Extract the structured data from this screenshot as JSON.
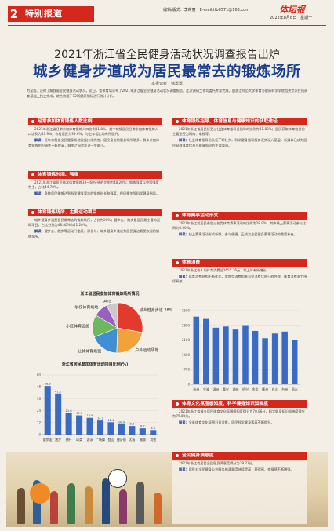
{
  "header": {
    "page_number": "2",
    "section": "特别报道",
    "info": "编辑/版式：李荷童　E-mail:tlb0571@163.com",
    "brand": "体坛报",
    "date": "2022年8月8日　星期一"
  },
  "subtitle": "2021年浙江省全民健身活动状况调查报告出炉",
  "headline": "城乡健身步道成为居民最常去的锻炼场所",
  "byline": "本报记者　徐翠翠",
  "lead": "为全面、及时了解我省全民健身活动状况，近日，省体育局公布了2021年浙江省全民健身活动状况调查报告。此次调研工作均委托专家完成，由浙江师范大学体育与健康科学学院相关专家在线调查基础上独立完成，综合数据于12项健康指标进行统计分析。",
  "sections": {
    "s1": {
      "title": "经常参加体育锻炼人数比例",
      "text": "2021年浙江省经常参加体育锻炼人口比例41.8%，其中城镇居民经常参加体育锻炼人口比例为43.9%，农村居民为39.6%，与上年相比均有所提升。",
      "key": "解读：",
      "key_text": "近年来我省全民健身场地设施持续完善，居民身边的健身场所增多，群众参加体育锻炼的积极性不断提高，城乡之间差距进一步缩小。"
    },
    "s2": {
      "title": "体育锻炼时间、强度",
      "text": "2021年浙江省居民每次体育锻炼30～60分钟的比例为48.20%；锻炼强度以中等强度为主，占比44.78%。",
      "key": "解读：",
      "key_text": "多数居民能够达到科学健身要求的锻炼时长和强度，但仍需加强科学健身指导。"
    },
    "s3": {
      "title": "体育锻炼场所、主要运动项目",
      "text": "城乡健身步道是居民最常去的锻炼场所，占比为28%；健步走、跑步是居民最主要的运动项目，占比分别为48.80%和41.20%。",
      "key": "解读：",
      "key_text": "健步走、跑步等运动门槛低、易参与，城乡健身步道成为居民身边最受欢迎的锻炼场所。"
    },
    "s4": {
      "title": "体育锻炼指导、体育信息与健康知识的获取途径",
      "text": "2021年浙江省居民接受过社会体育指导员指导的比例为31.80%；居民获取体育信息的主要途径为网络、电视等。",
      "key": "解读：",
      "key_text": "社会体育指导员队伍不断壮大，科学健身指导服务逐步深入基层，新媒体已成为居民获取体育信息与健康知识的主要渠道。"
    },
    "s5": {
      "title": "体育赛事活动形式",
      "text": "2021年浙江省居民参加过各类体育赛事活动的比例为28.9%，其中线上赛事活动参与比例为6.50%。",
      "key": "解读：",
      "key_text": "线上赛事活动形式新颖、参与便捷，正成为全民健身赛事活动的重要补充。"
    },
    "s6": {
      "title": "体育消费",
      "text": "2021年浙江省人均体育消费达2655.36元，较上年有所增长。",
      "key": "解读：",
      "key_text": "体育消费结构不断优化，实物型消费和参与型消费比例日趋合理，体育消费潜力持续释放。"
    },
    "s7": {
      "title": "体育文化氛围感知度、科学健身知识知晓度",
      "text": "2021年浙江省城乡居民体育文化氛围感知度得分为70.86分，科学健身知识知晓度得分为79.84分。",
      "key": "解读：",
      "key_text": "全省体育文化氛围日益浓厚，居民科学健身素养不断提升。"
    },
    "s8": {
      "title": "全民健身满意度",
      "text": "2021年浙江省居民全民健身满意度得分为79.73分。",
      "key": "解读：",
      "key_text": "居民对全民健身公共服务的满意度持续提高，获得感、幸福感不断增强。"
    }
  },
  "chart_pie": {
    "title": "浙江省居民参加体育锻炼场所情况",
    "type": "pie",
    "labels": [
      "城乡健身步道",
      "户外运动场地",
      "公共体育场馆",
      "小区体育设施",
      "学校体育场地",
      "其他"
    ],
    "values": [
      28.0,
      22.6,
      18.5,
      14.2,
      9.5,
      7.2
    ],
    "display": [
      "城乡健身步道 28%",
      "户外运动场地",
      "公共体育场馆",
      "小区体育设施",
      "学校体育场地",
      "其他"
    ],
    "colors": [
      "#e23b2e",
      "#f2a23b",
      "#3f8fd2",
      "#6cb85c",
      "#9b5fc0",
      "#c9c9c9"
    ]
  },
  "chart_bar_left": {
    "title": "浙江省居民参加体育运动项目比例(%)",
    "type": "bar",
    "categories": [
      "健步走",
      "跑步",
      "骑行",
      "球类",
      "游泳",
      "广场舞",
      "登山",
      "健身操",
      "太极",
      "瑜伽",
      "其他"
    ],
    "values": [
      48.8,
      41.2,
      21.6,
      19.3,
      16.8,
      14.1,
      12.4,
      10.3,
      8.6,
      6.2,
      4.5
    ],
    "ylim": [
      0,
      60
    ],
    "color": "#3a6bc4"
  },
  "chart_bar_right": {
    "title": "",
    "type": "bar",
    "categories": [
      "杭州",
      "宁波",
      "温州",
      "嘉兴",
      "湖州",
      "绍兴",
      "金华",
      "衢州",
      "舟山",
      "台州",
      "丽水"
    ],
    "values": [
      3214,
      3105,
      2688,
      2745,
      2601,
      2810,
      2533,
      2187,
      2410,
      2502,
      2096
    ],
    "ylim": [
      0,
      3500
    ],
    "color": "#3a6bc4"
  }
}
